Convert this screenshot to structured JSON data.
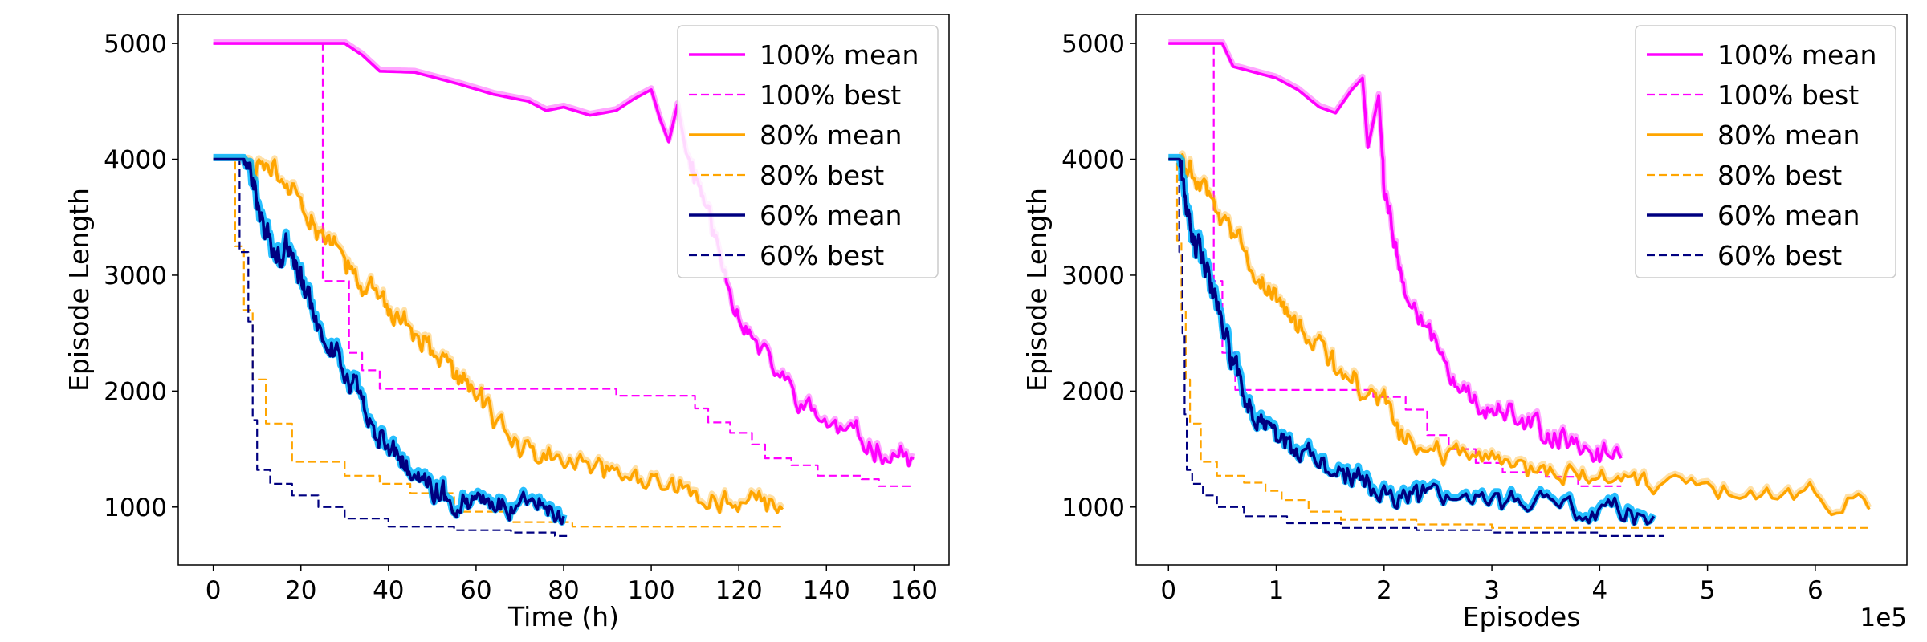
{
  "colors": {
    "100%": "#ff00ff",
    "80%": "#ffa500",
    "60%": "#000080",
    "band_60": "#00b4ff"
  },
  "chart_data": [
    {
      "type": "line",
      "xlabel": "Time (h)",
      "ylabel": "Episode Length",
      "xlim": [
        -8,
        168
      ],
      "ylim": [
        500,
        5250
      ],
      "xticks": [
        0,
        20,
        40,
        60,
        80,
        100,
        120,
        140,
        160
      ],
      "yticks": [
        1000,
        2000,
        3000,
        4000,
        5000
      ],
      "x_offset_label": "",
      "legend": "upper-right",
      "series": [
        {
          "name": "100% mean",
          "group": "100%",
          "style": "solid",
          "noisy": true,
          "x": [
            0,
            30,
            34,
            38,
            46,
            56,
            64,
            72,
            76,
            80,
            86,
            92,
            96,
            100,
            102,
            104,
            106,
            108,
            110,
            113,
            116,
            120,
            124,
            130,
            136,
            142,
            148,
            154,
            160
          ],
          "y": [
            5000,
            5000,
            4900,
            4760,
            4750,
            4650,
            4560,
            4500,
            4420,
            4450,
            4380,
            4420,
            4520,
            4600,
            4350,
            4150,
            4470,
            4050,
            3900,
            3550,
            3120,
            2680,
            2380,
            2100,
            1830,
            1680,
            1570,
            1480,
            1420
          ]
        },
        {
          "name": "100% best",
          "group": "100%",
          "style": "dashed",
          "noisy": false,
          "x": [
            0,
            25,
            25,
            31,
            31,
            34,
            34,
            38,
            38,
            92,
            92,
            110,
            110,
            113,
            113,
            118,
            118,
            123,
            123,
            126,
            126,
            132,
            132,
            138,
            138,
            148,
            148,
            152,
            152,
            160
          ],
          "y": [
            5000,
            5000,
            2950,
            2950,
            2330,
            2330,
            2180,
            2180,
            2020,
            2020,
            1960,
            1960,
            1850,
            1850,
            1730,
            1730,
            1640,
            1640,
            1540,
            1540,
            1420,
            1420,
            1360,
            1360,
            1270,
            1270,
            1240,
            1240,
            1180,
            1180
          ]
        },
        {
          "name": "80% mean",
          "group": "80%",
          "style": "solid",
          "noisy": true,
          "x": [
            0,
            8,
            12,
            16,
            20,
            24,
            28,
            32,
            36,
            40,
            44,
            48,
            52,
            56,
            60,
            64,
            70,
            76,
            82,
            88,
            94,
            100,
            106,
            112,
            118,
            124,
            130
          ],
          "y": [
            4000,
            4000,
            3920,
            3820,
            3700,
            3430,
            3250,
            3050,
            2900,
            2680,
            2600,
            2450,
            2250,
            2100,
            1980,
            1800,
            1520,
            1430,
            1380,
            1300,
            1250,
            1270,
            1150,
            1100,
            1060,
            1020,
            980
          ]
        },
        {
          "name": "80% best",
          "group": "80%",
          "style": "dashed",
          "noisy": false,
          "x": [
            0,
            5,
            5,
            7,
            7,
            9,
            9,
            12,
            12,
            18,
            18,
            30,
            30,
            38,
            38,
            45,
            45,
            55,
            55,
            68,
            68,
            82,
            82,
            130
          ],
          "y": [
            4000,
            4000,
            3250,
            3250,
            2700,
            2700,
            2100,
            2100,
            1720,
            1720,
            1390,
            1390,
            1270,
            1270,
            1200,
            1200,
            1120,
            1120,
            960,
            960,
            870,
            870,
            830,
            830
          ]
        },
        {
          "name": "60% mean",
          "group": "60%",
          "style": "solid",
          "noisy": true,
          "band": true,
          "x": [
            0,
            7,
            9,
            11,
            13,
            15,
            17,
            19,
            21,
            24,
            27,
            30,
            33,
            36,
            39,
            42,
            45,
            48,
            51,
            54,
            57,
            60,
            64,
            68,
            72,
            76,
            80
          ],
          "y": [
            4000,
            4000,
            3800,
            3450,
            3300,
            3180,
            3260,
            3050,
            2850,
            2600,
            2370,
            2170,
            1950,
            1750,
            1600,
            1450,
            1330,
            1230,
            1150,
            1090,
            1060,
            1040,
            1030,
            1020,
            1010,
            960,
            920
          ]
        },
        {
          "name": "60% best",
          "group": "60%",
          "style": "dashed",
          "noisy": false,
          "x": [
            0,
            6,
            6,
            8,
            8,
            9,
            9,
            10,
            10,
            13,
            13,
            18,
            18,
            24,
            24,
            30,
            30,
            40,
            40,
            55,
            55,
            68,
            68,
            78,
            78,
            81
          ],
          "y": [
            4000,
            4000,
            3200,
            3200,
            2600,
            2600,
            1750,
            1750,
            1320,
            1320,
            1200,
            1200,
            1100,
            1100,
            1000,
            1000,
            900,
            900,
            830,
            830,
            800,
            800,
            780,
            780,
            750,
            750
          ]
        }
      ]
    },
    {
      "type": "line",
      "xlabel": "Episodes",
      "ylabel": "Episode Length",
      "xlim": [
        -0.3,
        6.85
      ],
      "ylim": [
        500,
        5250
      ],
      "xticks": [
        0,
        1,
        2,
        3,
        4,
        5,
        6
      ],
      "yticks": [
        1000,
        2000,
        3000,
        4000,
        5000
      ],
      "x_offset_label": "1e5",
      "legend": "upper-right",
      "series": [
        {
          "name": "100% mean",
          "group": "100%",
          "style": "solid",
          "noisy": true,
          "x": [
            0,
            0.5,
            0.6,
            0.8,
            1.0,
            1.2,
            1.4,
            1.55,
            1.7,
            1.8,
            1.85,
            1.95,
            2.0,
            2.1,
            2.2,
            2.4,
            2.6,
            2.8,
            3.0,
            3.2,
            3.4,
            3.6,
            3.8,
            4.0,
            4.2
          ],
          "y": [
            5000,
            5000,
            4800,
            4750,
            4700,
            4600,
            4450,
            4400,
            4600,
            4700,
            4100,
            4550,
            3800,
            3300,
            2800,
            2500,
            2200,
            1950,
            1850,
            1750,
            1680,
            1600,
            1550,
            1480,
            1420
          ]
        },
        {
          "name": "100% best",
          "group": "100%",
          "style": "dashed",
          "noisy": false,
          "x": [
            0,
            0.42,
            0.42,
            0.5,
            0.5,
            0.62,
            0.62,
            1.9,
            1.9,
            2.2,
            2.2,
            2.4,
            2.4,
            2.6,
            2.6,
            2.85,
            2.85,
            3.1,
            3.1,
            3.5,
            3.5,
            3.8,
            3.8,
            4.2
          ],
          "y": [
            5000,
            5000,
            2950,
            2950,
            2330,
            2330,
            2010,
            2010,
            1950,
            1950,
            1840,
            1840,
            1620,
            1620,
            1500,
            1500,
            1380,
            1380,
            1300,
            1300,
            1260,
            1260,
            1180,
            1180
          ]
        },
        {
          "name": "80% mean",
          "group": "80%",
          "style": "solid",
          "noisy": true,
          "x": [
            0,
            0.1,
            0.2,
            0.3,
            0.45,
            0.6,
            0.75,
            0.9,
            1.05,
            1.2,
            1.4,
            1.6,
            1.8,
            2.0,
            2.2,
            2.4,
            2.7,
            3.0,
            3.3,
            3.6,
            3.9,
            4.2,
            4.5,
            5.0,
            5.5,
            6.0,
            6.5
          ],
          "y": [
            4000,
            4000,
            3900,
            3750,
            3550,
            3350,
            3100,
            2950,
            2700,
            2550,
            2400,
            2150,
            2000,
            1850,
            1600,
            1500,
            1420,
            1400,
            1330,
            1290,
            1260,
            1250,
            1220,
            1120,
            1100,
            1070,
            980
          ]
        },
        {
          "name": "80% best",
          "group": "80%",
          "style": "dashed",
          "noisy": false,
          "x": [
            0,
            0.08,
            0.08,
            0.12,
            0.12,
            0.16,
            0.16,
            0.2,
            0.2,
            0.3,
            0.3,
            0.45,
            0.45,
            0.7,
            0.7,
            0.9,
            0.9,
            1.05,
            1.05,
            1.3,
            1.3,
            1.6,
            1.6,
            2.3,
            2.3,
            3.0,
            3.0,
            6.5
          ],
          "y": [
            4000,
            4000,
            3300,
            3300,
            2700,
            2700,
            2100,
            2100,
            1720,
            1720,
            1390,
            1390,
            1270,
            1270,
            1210,
            1210,
            1140,
            1140,
            1060,
            1060,
            960,
            960,
            890,
            890,
            850,
            850,
            820,
            820
          ]
        },
        {
          "name": "60% mean",
          "group": "60%",
          "style": "solid",
          "noisy": true,
          "band": true,
          "x": [
            0,
            0.1,
            0.15,
            0.2,
            0.25,
            0.3,
            0.35,
            0.45,
            0.55,
            0.65,
            0.75,
            0.85,
            0.95,
            1.05,
            1.2,
            1.4,
            1.6,
            1.8,
            2.0,
            2.2,
            2.4,
            2.7,
            3.0,
            3.3,
            3.6,
            3.9,
            4.2,
            4.5
          ],
          "y": [
            4000,
            4000,
            3700,
            3500,
            3300,
            3250,
            3100,
            2700,
            2400,
            2100,
            1900,
            1750,
            1650,
            1550,
            1450,
            1350,
            1280,
            1200,
            1150,
            1100,
            1070,
            1050,
            1040,
            1030,
            1020,
            1000,
            950,
            920
          ]
        },
        {
          "name": "60% best",
          "group": "60%",
          "style": "dashed",
          "noisy": false,
          "x": [
            0,
            0.1,
            0.1,
            0.13,
            0.13,
            0.15,
            0.15,
            0.17,
            0.17,
            0.22,
            0.22,
            0.32,
            0.32,
            0.45,
            0.45,
            0.7,
            0.7,
            1.1,
            1.1,
            1.6,
            1.6,
            2.3,
            2.3,
            3.0,
            3.0,
            4.0,
            4.0,
            4.6
          ],
          "y": [
            4000,
            4000,
            3200,
            3200,
            2500,
            2500,
            1800,
            1800,
            1320,
            1320,
            1200,
            1200,
            1100,
            1100,
            1000,
            1000,
            920,
            920,
            860,
            860,
            820,
            820,
            800,
            800,
            780,
            780,
            750,
            750
          ]
        }
      ]
    }
  ]
}
